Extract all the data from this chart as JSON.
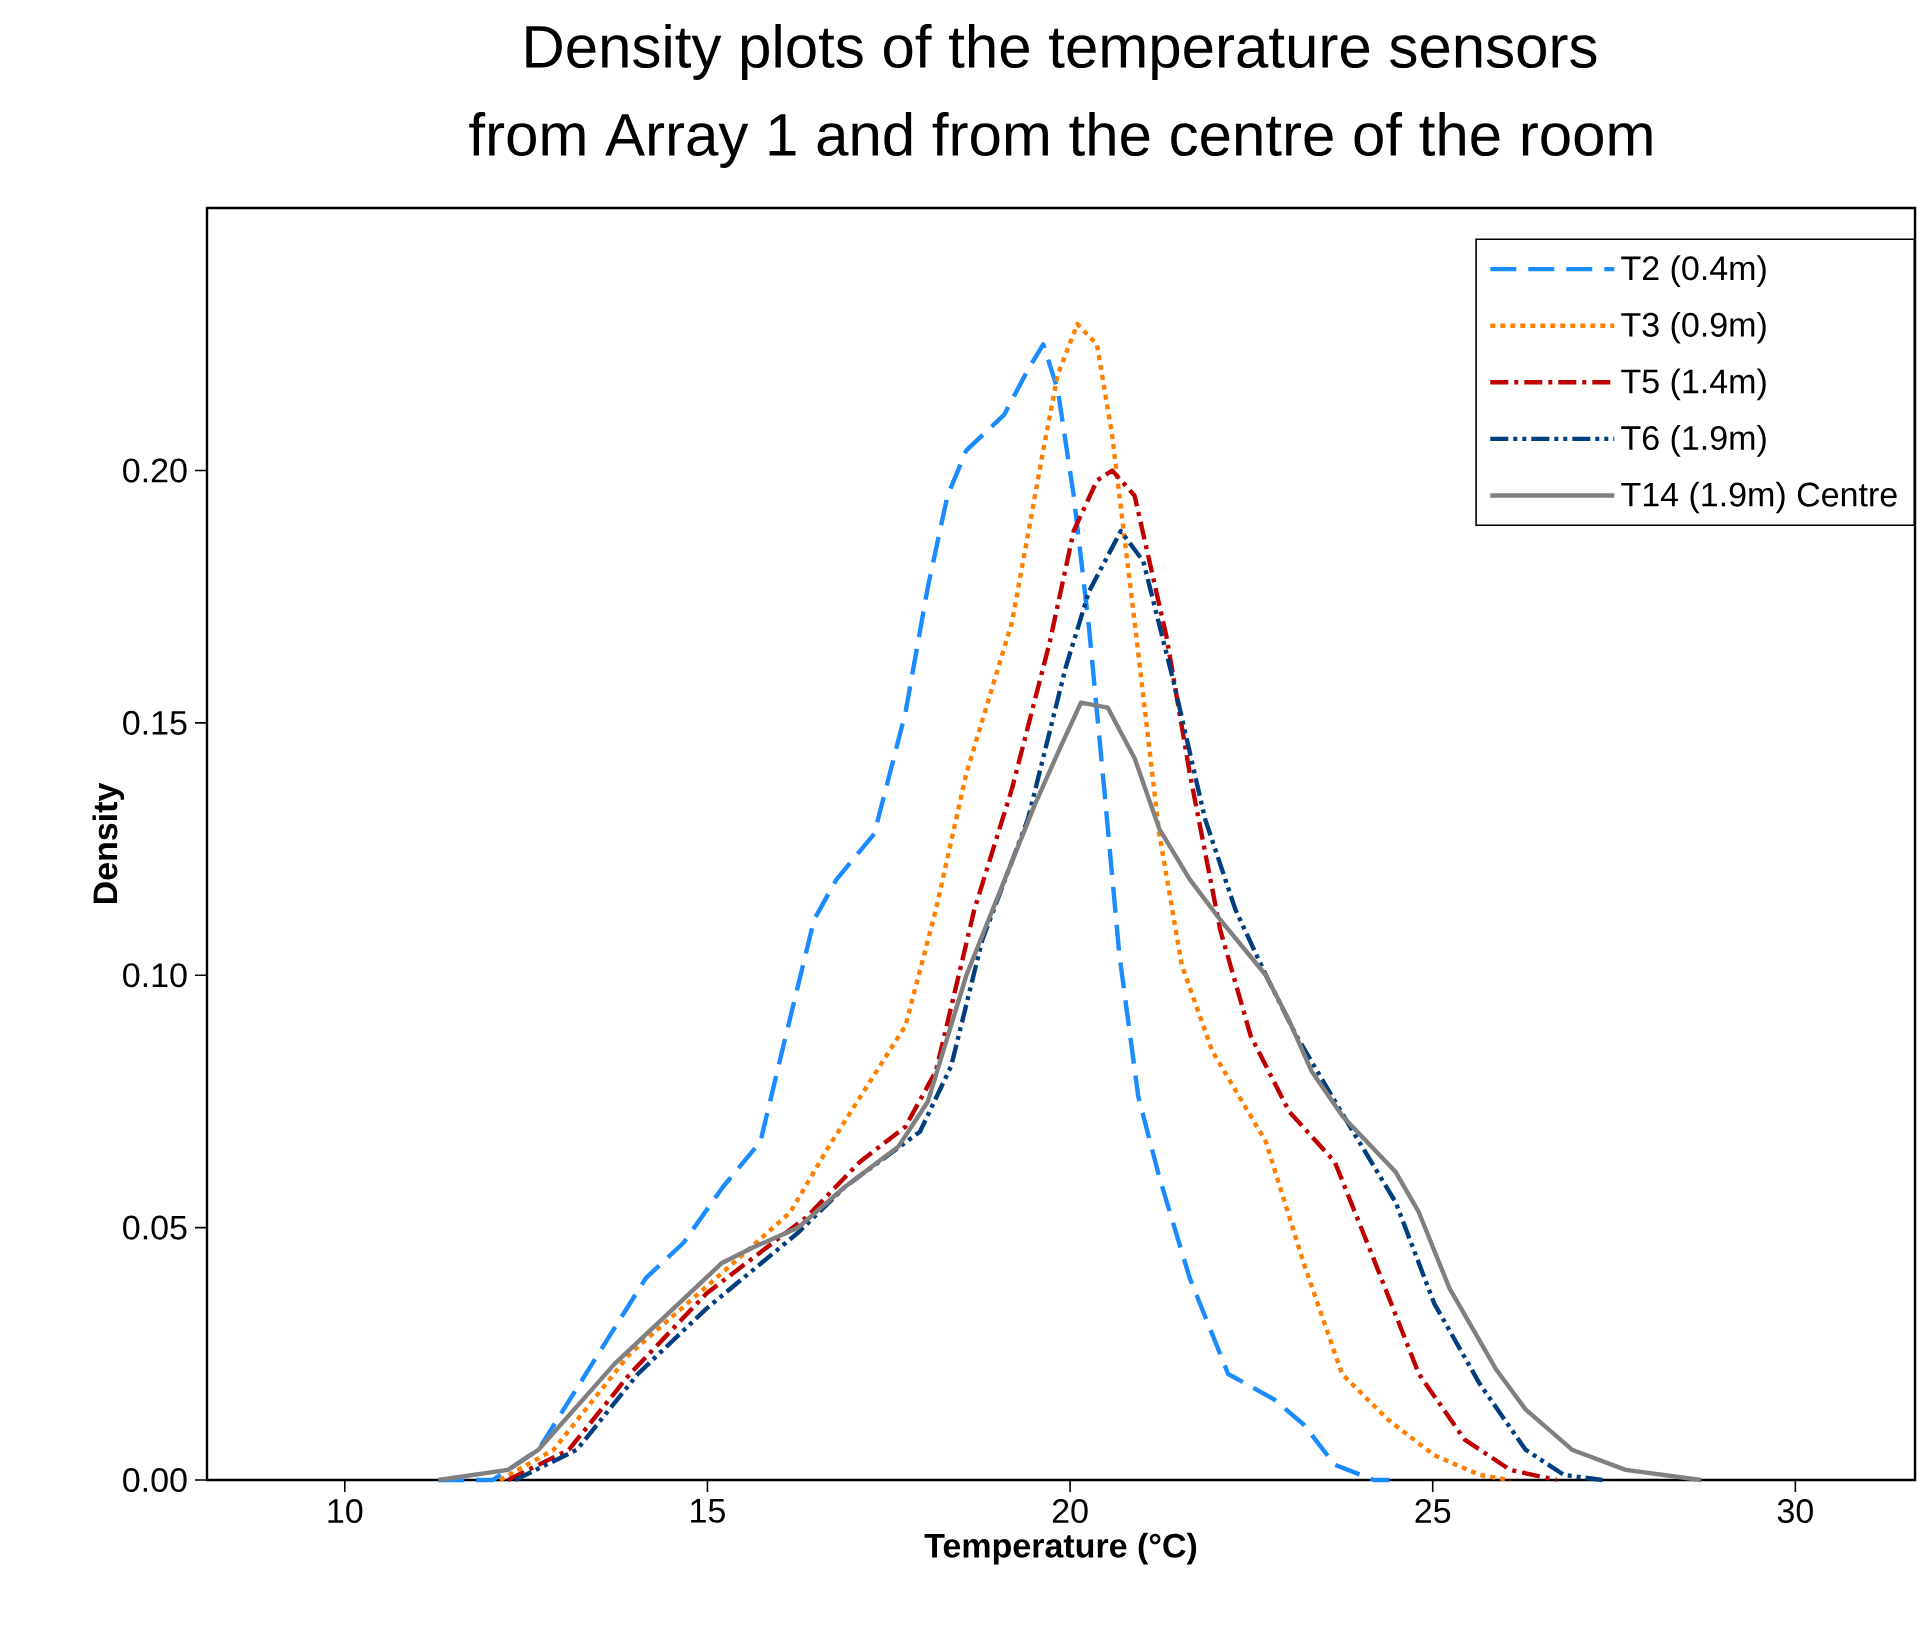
{
  "chart_data": {
    "type": "line",
    "title": "Density plots of the temperature sensors",
    "subtitle": "from Array 1 and from the centre of the room",
    "xlabel": "Temperature (°C)",
    "ylabel": "Density",
    "xlim": [
      8.1,
      31.65
    ],
    "ylim": [
      0,
      0.252
    ],
    "xticks": [
      10,
      15,
      20,
      25,
      30
    ],
    "yticks": [
      {
        "value": 0,
        "label": "0.00"
      },
      {
        "value": 0.05,
        "label": "0.05"
      },
      {
        "value": 0.1,
        "label": "0.10"
      },
      {
        "value": 0.15,
        "label": "0.15"
      },
      {
        "value": 0.2,
        "label": "0.20"
      }
    ],
    "legend": "top right",
    "series": [
      {
        "name": "T2 (0.4m)",
        "color": "#1a8cff",
        "line_style": "dashed",
        "x": [
          11.29,
          12.04,
          12.67,
          14.15,
          14.67,
          15.21,
          15.73,
          16.03,
          16.47,
          16.78,
          17.3,
          17.73,
          18.04,
          18.31,
          18.57,
          19.09,
          19.42,
          19.63,
          19.83,
          20.05,
          20.26,
          20.47,
          20.68,
          20.94,
          21.23,
          21.65,
          22.18,
          22.81,
          23.22,
          23.65,
          24.19,
          24.4
        ],
        "values": [
          0,
          0,
          0.006,
          0.04,
          0.047,
          0.058,
          0.067,
          0.085,
          0.111,
          0.119,
          0.128,
          0.152,
          0.177,
          0.195,
          0.204,
          0.211,
          0.22,
          0.225,
          0.216,
          0.195,
          0.169,
          0.137,
          0.104,
          0.076,
          0.06,
          0.04,
          0.021,
          0.016,
          0.011,
          0.003,
          0,
          0
        ]
      },
      {
        "name": "T3 (0.9m)",
        "color": "#ff8000",
        "line_style": "dotted",
        "x": [
          12.14,
          12.88,
          13.93,
          15.2,
          16.14,
          16.67,
          17.73,
          18.15,
          18.57,
          19.2,
          19.63,
          19.83,
          20.1,
          20.37,
          20.58,
          20.89,
          21.23,
          21.54,
          21.96,
          22.7,
          23.22,
          23.75,
          24.38,
          25.01,
          25.65,
          26.07
        ],
        "values": [
          0,
          0.006,
          0.025,
          0.041,
          0.053,
          0.066,
          0.09,
          0.113,
          0.14,
          0.17,
          0.204,
          0.219,
          0.229,
          0.225,
          0.207,
          0.17,
          0.128,
          0.102,
          0.085,
          0.067,
          0.043,
          0.021,
          0.012,
          0.005,
          0.001,
          0
        ]
      },
      {
        "name": "T5 (1.4m)",
        "color": "#c00000",
        "line_style": "dashdot",
        "x": [
          12.25,
          13.09,
          13.93,
          14.99,
          16.36,
          17.1,
          17.73,
          18.15,
          18.68,
          19.2,
          19.72,
          20.05,
          20.37,
          20.58,
          20.89,
          21.33,
          21.65,
          22.07,
          22.49,
          23.02,
          23.65,
          24.18,
          24.81,
          25.44,
          26.07,
          26.71
        ],
        "values": [
          0,
          0.006,
          0.021,
          0.037,
          0.052,
          0.063,
          0.07,
          0.081,
          0.113,
          0.137,
          0.166,
          0.188,
          0.198,
          0.2,
          0.195,
          0.167,
          0.14,
          0.109,
          0.088,
          0.073,
          0.063,
          0.044,
          0.021,
          0.008,
          0.002,
          0
        ]
      },
      {
        "name": "T6 (1.9m)",
        "color": "#003f7f",
        "line_style": "dashdotdot",
        "x": [
          12.35,
          13.2,
          14.04,
          14.99,
          16.25,
          16.89,
          17.93,
          18.36,
          18.79,
          19.42,
          19.94,
          20.26,
          20.7,
          21.01,
          21.43,
          21.86,
          22.28,
          22.7,
          23.12,
          23.86,
          24.49,
          25.02,
          25.65,
          26.28,
          26.81,
          27.34
        ],
        "values": [
          0,
          0.006,
          0.021,
          0.034,
          0.049,
          0.058,
          0.069,
          0.082,
          0.107,
          0.131,
          0.161,
          0.176,
          0.188,
          0.182,
          0.158,
          0.131,
          0.113,
          0.1,
          0.088,
          0.07,
          0.055,
          0.035,
          0.019,
          0.006,
          0.001,
          0
        ]
      },
      {
        "name": "T14 (1.9m) Centre",
        "color": "#808080",
        "line_style": "solid",
        "x": [
          11.29,
          12.25,
          12.67,
          13.72,
          15.2,
          15.62,
          16.25,
          16.89,
          17.63,
          18.04,
          18.57,
          19.1,
          19.52,
          19.83,
          20.15,
          20.52,
          20.89,
          21.23,
          21.65,
          22.07,
          22.7,
          23.02,
          23.33,
          23.76,
          24.49,
          24.81,
          25.23,
          25.87,
          26.28,
          26.92,
          27.66,
          28.7
        ],
        "values": [
          0,
          0.002,
          0.006,
          0.023,
          0.043,
          0.046,
          0.05,
          0.058,
          0.066,
          0.075,
          0.1,
          0.119,
          0.134,
          0.144,
          0.154,
          0.153,
          0.143,
          0.129,
          0.119,
          0.111,
          0.1,
          0.091,
          0.081,
          0.072,
          0.061,
          0.053,
          0.038,
          0.022,
          0.014,
          0.006,
          0.002,
          0
        ]
      }
    ]
  }
}
